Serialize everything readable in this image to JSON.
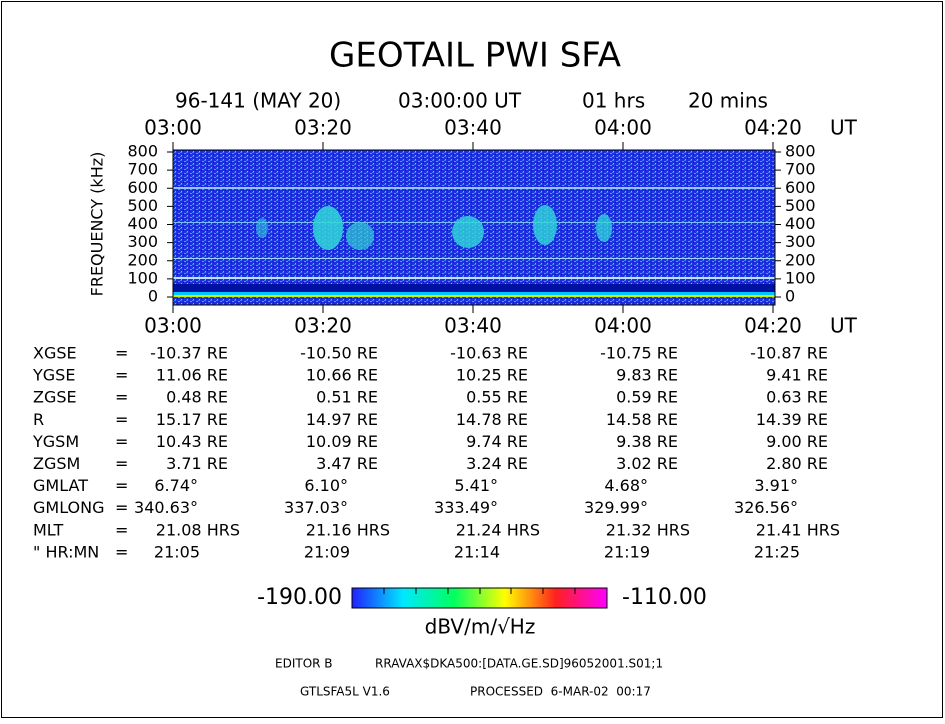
{
  "title": "GEOTAIL PWI SFA",
  "subtitle": {
    "date": "96-141 (MAY 20)",
    "start": "03:00:00 UT",
    "hours": "01 hrs",
    "mins": "20 mins"
  },
  "chart_data": {
    "type": "spectrogram",
    "y_label": "FREQUENCY (kHz)",
    "ylim": [
      0,
      800
    ],
    "yticks": [
      0,
      100,
      200,
      300,
      400,
      500,
      600,
      700,
      800
    ],
    "time_ticks": [
      "03:00",
      "03:20",
      "03:40",
      "04:00",
      "04:20"
    ],
    "time_unit": "UT"
  },
  "table": {
    "rows": [
      [
        "XGSE",
        "=",
        "-10.37 RE",
        "-10.50 RE",
        "-10.63 RE",
        "-10.75 RE",
        "-10.87 RE"
      ],
      [
        "YGSE",
        "=",
        "11.06 RE",
        "10.66 RE",
        "10.25 RE",
        "9.83 RE",
        "9.41 RE"
      ],
      [
        "ZGSE",
        "=",
        "0.48 RE",
        "0.51 RE",
        "0.55 RE",
        "0.59 RE",
        "0.63 RE"
      ],
      [
        "R",
        "=",
        "15.17 RE",
        "14.97 RE",
        "14.78 RE",
        "14.58 RE",
        "14.39 RE"
      ],
      [
        "YGSM",
        "=",
        "10.43 RE",
        "10.09 RE",
        "9.74 RE",
        "9.38 RE",
        "9.00 RE"
      ],
      [
        "ZGSM",
        "=",
        "3.71 RE",
        "3.47 RE",
        "3.24 RE",
        "3.02 RE",
        "2.80 RE"
      ],
      [
        "GMLAT",
        "=",
        "6.74°",
        "6.10°",
        "5.41°",
        "4.68°",
        "3.91°"
      ],
      [
        "GMLONG",
        "=",
        "340.63°",
        "337.03°",
        "333.49°",
        "329.99°",
        "326.56°"
      ],
      [
        "MLT",
        "=",
        "21.08 HRS",
        "21.16 HRS",
        "21.24 HRS",
        "21.32 HRS",
        "21.41 HRS"
      ],
      [
        "\" HR:MN",
        "=",
        "21:05",
        "21:09",
        "21:14",
        "21:19",
        "21:25"
      ]
    ]
  },
  "colorbar": {
    "min": {
      "value": -190,
      "label": "-190.00"
    },
    "max": {
      "value": -110,
      "label": "-110.00"
    },
    "unit": "dBV/m/√Hz",
    "colors": [
      "#2020ff",
      "#00e8ff",
      "#00ff60",
      "#ffff00",
      "#ff2020",
      "#ff00ff"
    ]
  },
  "footer": {
    "editor": "EDITOR B",
    "file": "RRAVAX$DKA500:[DATA.GE.SD]96052001.S01;1",
    "version": "GTLSFA5L V1.6",
    "processed": "PROCESSED  6-MAR-02  00:17"
  }
}
